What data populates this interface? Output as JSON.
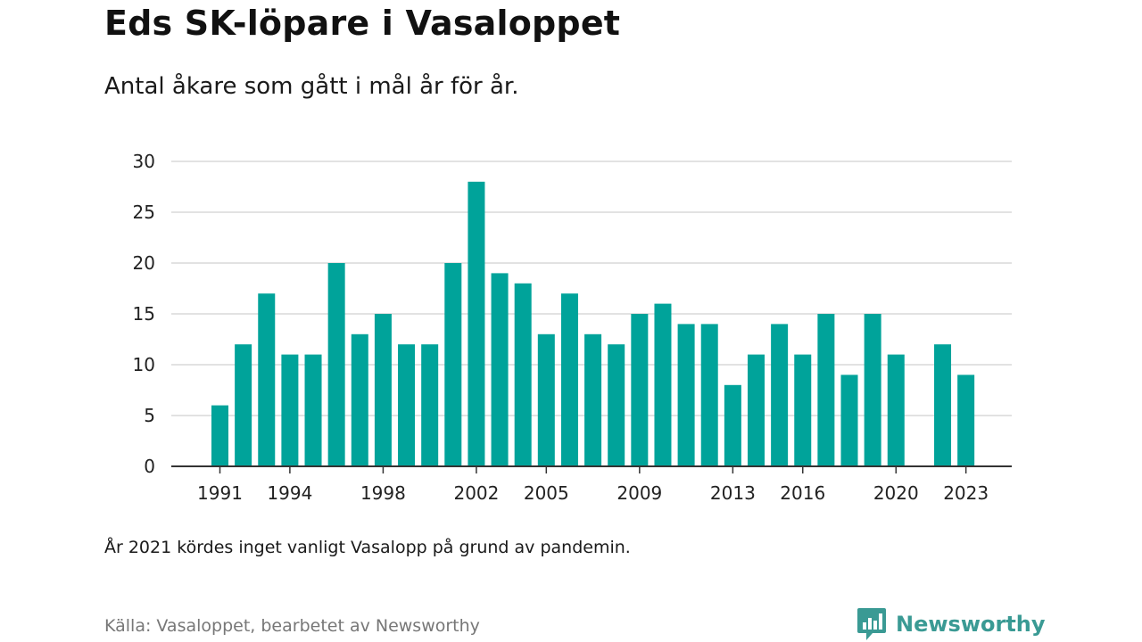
{
  "title": "Eds SK-löpare i Vasaloppet",
  "subtitle": "Antal åkare som gått i mål år för år.",
  "note": "År 2021 kördes inget vanligt Vasalopp på grund av pandemin.",
  "source": "Källa: Vasaloppet, bearbetet av Newsworthy",
  "brand": {
    "name": "Newsworthy",
    "icon": "newsworthy-logo-icon",
    "color": "#3a9a94"
  },
  "chart_data": {
    "type": "bar",
    "title": "Eds SK-löpare i Vasaloppet",
    "subtitle": "Antal åkare som gått i mål år för år.",
    "xlabel": "",
    "ylabel": "",
    "ylim": [
      0,
      30
    ],
    "yticks": [
      0,
      5,
      10,
      15,
      20,
      25,
      30
    ],
    "xticks": [
      "1991",
      "1994",
      "1998",
      "2002",
      "2005",
      "2009",
      "2013",
      "2016",
      "2020",
      "2023"
    ],
    "grid": true,
    "bar_color": "#00a39a",
    "categories": [
      "1991",
      "1992",
      "1993",
      "1994",
      "1995",
      "1996",
      "1997",
      "1998",
      "1999",
      "2000",
      "2001",
      "2002",
      "2003",
      "2004",
      "2005",
      "2006",
      "2007",
      "2008",
      "2009",
      "2010",
      "2011",
      "2012",
      "2013",
      "2014",
      "2015",
      "2016",
      "2017",
      "2018",
      "2019",
      "2020",
      "2021",
      "2022",
      "2023"
    ],
    "values": [
      6,
      12,
      17,
      11,
      11,
      20,
      13,
      15,
      12,
      12,
      20,
      28,
      19,
      18,
      13,
      17,
      13,
      12,
      15,
      16,
      14,
      14,
      8,
      11,
      14,
      11,
      15,
      9,
      15,
      11,
      null,
      12,
      9
    ]
  }
}
